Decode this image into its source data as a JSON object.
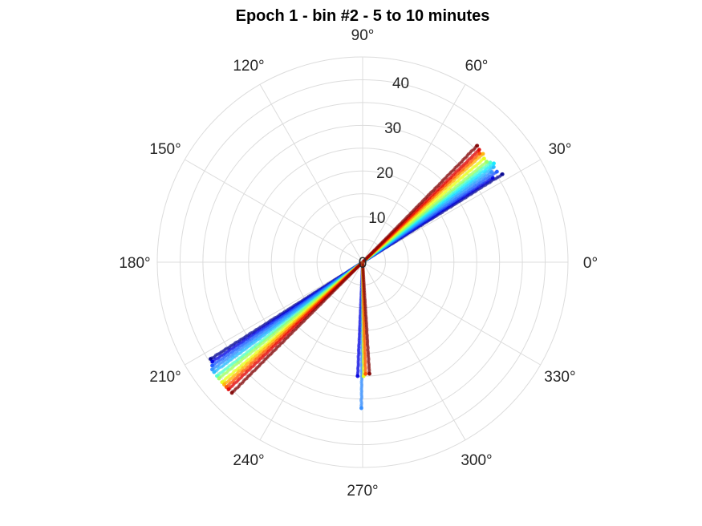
{
  "chart_data": {
    "type": "scatter",
    "subtype": "polar",
    "title": "Epoch 1 - bin #2 - 5 to 10 minutes",
    "r_range": [
      0,
      45
    ],
    "r_ticks": [
      "0",
      "10",
      "20",
      "30",
      "40"
    ],
    "angle_ticks": [
      {
        "deg": 0,
        "label": "0°"
      },
      {
        "deg": 30,
        "label": "30°"
      },
      {
        "deg": 60,
        "label": "60°"
      },
      {
        "deg": 90,
        "label": "90°"
      },
      {
        "deg": 120,
        "label": "120°"
      },
      {
        "deg": 150,
        "label": "150°"
      },
      {
        "deg": 180,
        "label": "180°"
      },
      {
        "deg": 210,
        "label": "210°"
      },
      {
        "deg": 240,
        "label": "240°"
      },
      {
        "deg": 270,
        "label": "270°"
      },
      {
        "deg": 300,
        "label": "300°"
      },
      {
        "deg": 330,
        "label": "330°"
      }
    ],
    "grid": true,
    "colormap": "jet",
    "series": [
      {
        "color": "#00008f",
        "angle_deg": 32.2,
        "r_max": 36.2
      },
      {
        "color": "#0000e0",
        "angle_deg": 33.0,
        "r_max": 34.0
      },
      {
        "color": "#1a55ff",
        "angle_deg": 34.0,
        "r_max": 35.5
      },
      {
        "color": "#2e8bff",
        "angle_deg": 35.0,
        "r_max": 34.5
      },
      {
        "color": "#22b8ff",
        "angle_deg": 36.0,
        "r_max": 35.5
      },
      {
        "color": "#12e8ff",
        "angle_deg": 37.0,
        "r_max": 36.0
      },
      {
        "color": "#4dffc8",
        "angle_deg": 38.0,
        "r_max": 35.5
      },
      {
        "color": "#9aff60",
        "angle_deg": 39.0,
        "r_max": 35.0
      },
      {
        "color": "#e8ff12",
        "angle_deg": 40.5,
        "r_max": 35.0
      },
      {
        "color": "#ffb000",
        "angle_deg": 42.0,
        "r_max": 35.5
      },
      {
        "color": "#ff5000",
        "angle_deg": 43.0,
        "r_max": 35.0
      },
      {
        "color": "#e00000",
        "angle_deg": 44.0,
        "r_max": 35.5
      },
      {
        "color": "#800000",
        "angle_deg": 45.5,
        "r_max": 35.8
      },
      {
        "color": "#00008f",
        "angle_deg": 212.5,
        "r_max": 39.5
      },
      {
        "color": "#0000e0",
        "angle_deg": 213.5,
        "r_max": 39.5
      },
      {
        "color": "#1a55ff",
        "angle_deg": 214.5,
        "r_max": 40.0
      },
      {
        "color": "#2e8bff",
        "angle_deg": 215.5,
        "r_max": 40.5
      },
      {
        "color": "#22b8ff",
        "angle_deg": 216.5,
        "r_max": 40.5
      },
      {
        "color": "#4dffc8",
        "angle_deg": 218.0,
        "r_max": 40.5
      },
      {
        "color": "#9aff60",
        "angle_deg": 219.0,
        "r_max": 40.5
      },
      {
        "color": "#e8ff12",
        "angle_deg": 220.5,
        "r_max": 40.5
      },
      {
        "color": "#ffb000",
        "angle_deg": 221.5,
        "r_max": 40.5
      },
      {
        "color": "#ff5000",
        "angle_deg": 222.5,
        "r_max": 40.5
      },
      {
        "color": "#e00000",
        "angle_deg": 223.5,
        "r_max": 40.5
      },
      {
        "color": "#800000",
        "angle_deg": 225.0,
        "r_max": 40.5
      },
      {
        "color": "#0000e0",
        "angle_deg": 267.5,
        "r_max": 25.0
      },
      {
        "color": "#2e8bff",
        "angle_deg": 269.5,
        "r_max": 32.0
      },
      {
        "color": "#e8ff12",
        "angle_deg": 270.5,
        "r_max": 25.0
      },
      {
        "color": "#ff5000",
        "angle_deg": 271.5,
        "r_max": 24.5
      },
      {
        "color": "#800000",
        "angle_deg": 273.5,
        "r_max": 24.5
      }
    ]
  }
}
